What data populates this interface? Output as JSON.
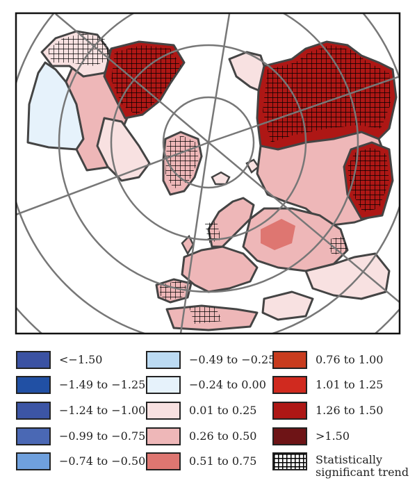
{
  "map": {
    "projection": "north-polar-stereographic",
    "background_color": "#ffffff",
    "coastline_color": "#444444",
    "graticule_color": "#777777",
    "regions": [
      {
        "name": "greenland",
        "class": "1.26 to 1.50",
        "significant": true
      },
      {
        "name": "eastern-siberia-far-east",
        "class": "1.26 to 1.50",
        "significant": true
      },
      {
        "name": "western-siberia",
        "class": "0.26 to 0.50",
        "significant": true
      },
      {
        "name": "eastern-europe",
        "class": "0.51 to 0.75",
        "significant": false
      },
      {
        "name": "western-europe",
        "class": "0.26 to 0.50",
        "significant": false
      },
      {
        "name": "iberia-north-africa",
        "class": "0.26 to 0.50",
        "significant": true
      },
      {
        "name": "alaska-western-canada",
        "class": "-0.24 to 0.00",
        "significant": false
      },
      {
        "name": "central-canada",
        "class": "0.01 to 0.25",
        "significant": false
      }
    ]
  },
  "legend": {
    "items": [
      {
        "label": "<−1.50",
        "color": "#3b52a3"
      },
      {
        "label": "−1.49 to −1.25",
        "color": "#2150a4"
      },
      {
        "label": "−1.24 to −1.00",
        "color": "#3c55a5"
      },
      {
        "label": "−0.99 to −0.75",
        "color": "#4a68b4"
      },
      {
        "label": "−0.74 to −0.50",
        "color": "#6fa0dd"
      },
      {
        "label": "−0.49 to −0.25",
        "color": "#bcdbf3"
      },
      {
        "label": "−0.24 to 0.00",
        "color": "#e6f2fb"
      },
      {
        "label": "0.01 to 0.25",
        "color": "#f8e1e1"
      },
      {
        "label": "0.26 to 0.50",
        "color": "#eeb7b8"
      },
      {
        "label": "0.51 to 0.75",
        "color": "#de7671"
      },
      {
        "label": "0.76 to 1.00",
        "color": "#c83c1e"
      },
      {
        "label": "1.01 to 1.25",
        "color": "#d02a1f"
      },
      {
        "label": "1.26 to 1.50",
        "color": "#ae1715"
      },
      {
        "label": ">1.50",
        "color": "#6e1416"
      },
      {
        "label": "Statistically significant trend",
        "color": "hatch"
      }
    ]
  }
}
